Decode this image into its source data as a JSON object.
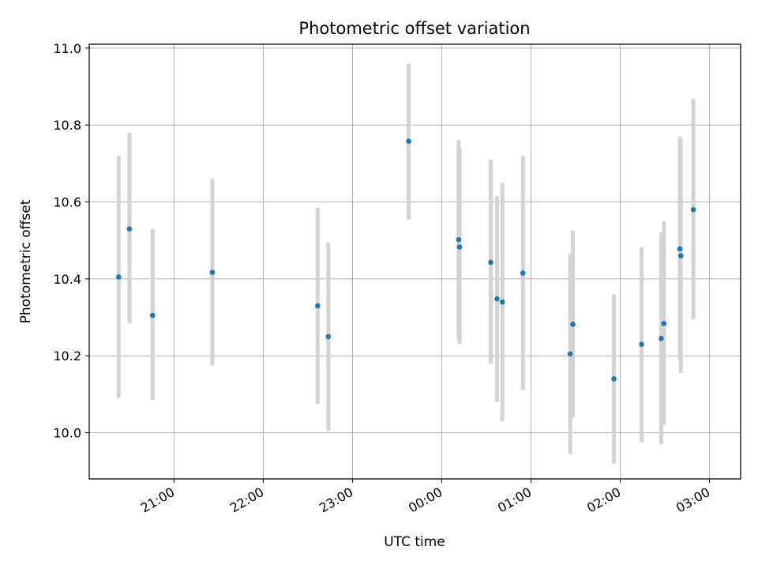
{
  "chart_data": {
    "type": "scatter",
    "title": "Photometric offset variation",
    "xlabel": "UTC time",
    "ylabel": "Photometric offset",
    "x_unit": "UTC time of day (hours; values past 24 are after midnight)",
    "xlim": [
      20.05,
      27.35
    ],
    "ylim": [
      9.88,
      11.01
    ],
    "xticks": [
      {
        "value": 21,
        "label": "21:00"
      },
      {
        "value": 22,
        "label": "22:00"
      },
      {
        "value": 23,
        "label": "23:00"
      },
      {
        "value": 24,
        "label": "00:00"
      },
      {
        "value": 25,
        "label": "01:00"
      },
      {
        "value": 26,
        "label": "02:00"
      },
      {
        "value": 27,
        "label": "03:00"
      }
    ],
    "yticks": [
      {
        "value": 10.0,
        "label": "10.0"
      },
      {
        "value": 10.2,
        "label": "10.2"
      },
      {
        "value": 10.4,
        "label": "10.4"
      },
      {
        "value": 10.6,
        "label": "10.6"
      },
      {
        "value": 10.8,
        "label": "10.8"
      },
      {
        "value": 11.0,
        "label": "11.0"
      }
    ],
    "grid": true,
    "colors": {
      "points": "#1f77b4",
      "errorbars": "#d3d3d3",
      "grid": "#b0b0b0"
    },
    "points": [
      {
        "x": 20.38,
        "y": 10.405,
        "ylow": 10.09,
        "yhigh": 10.72
      },
      {
        "x": 20.5,
        "y": 10.53,
        "ylow": 10.285,
        "yhigh": 10.78
      },
      {
        "x": 20.76,
        "y": 10.305,
        "ylow": 10.085,
        "yhigh": 10.53
      },
      {
        "x": 21.43,
        "y": 10.417,
        "ylow": 10.175,
        "yhigh": 10.66
      },
      {
        "x": 22.61,
        "y": 10.33,
        "ylow": 10.075,
        "yhigh": 10.585
      },
      {
        "x": 22.73,
        "y": 10.25,
        "ylow": 10.005,
        "yhigh": 10.495
      },
      {
        "x": 23.63,
        "y": 10.758,
        "ylow": 10.555,
        "yhigh": 10.96
      },
      {
        "x": 24.19,
        "y": 10.502,
        "ylow": 10.24,
        "yhigh": 10.76
      },
      {
        "x": 24.2,
        "y": 10.483,
        "ylow": 10.23,
        "yhigh": 10.74
      },
      {
        "x": 24.55,
        "y": 10.443,
        "ylow": 10.18,
        "yhigh": 10.71
      },
      {
        "x": 24.62,
        "y": 10.348,
        "ylow": 10.08,
        "yhigh": 10.615
      },
      {
        "x": 24.68,
        "y": 10.34,
        "ylow": 10.03,
        "yhigh": 10.65
      },
      {
        "x": 24.91,
        "y": 10.415,
        "ylow": 10.11,
        "yhigh": 10.72
      },
      {
        "x": 25.44,
        "y": 10.205,
        "ylow": 9.945,
        "yhigh": 10.465
      },
      {
        "x": 25.47,
        "y": 10.282,
        "ylow": 10.04,
        "yhigh": 10.525
      },
      {
        "x": 25.93,
        "y": 10.14,
        "ylow": 9.92,
        "yhigh": 10.36
      },
      {
        "x": 26.24,
        "y": 10.23,
        "ylow": 9.975,
        "yhigh": 10.483
      },
      {
        "x": 26.46,
        "y": 10.245,
        "ylow": 9.97,
        "yhigh": 10.52
      },
      {
        "x": 26.49,
        "y": 10.284,
        "ylow": 10.02,
        "yhigh": 10.55
      },
      {
        "x": 26.67,
        "y": 10.478,
        "ylow": 10.19,
        "yhigh": 10.77
      },
      {
        "x": 26.68,
        "y": 10.46,
        "ylow": 10.155,
        "yhigh": 10.765
      },
      {
        "x": 26.82,
        "y": 10.58,
        "ylow": 10.295,
        "yhigh": 10.868
      }
    ]
  }
}
